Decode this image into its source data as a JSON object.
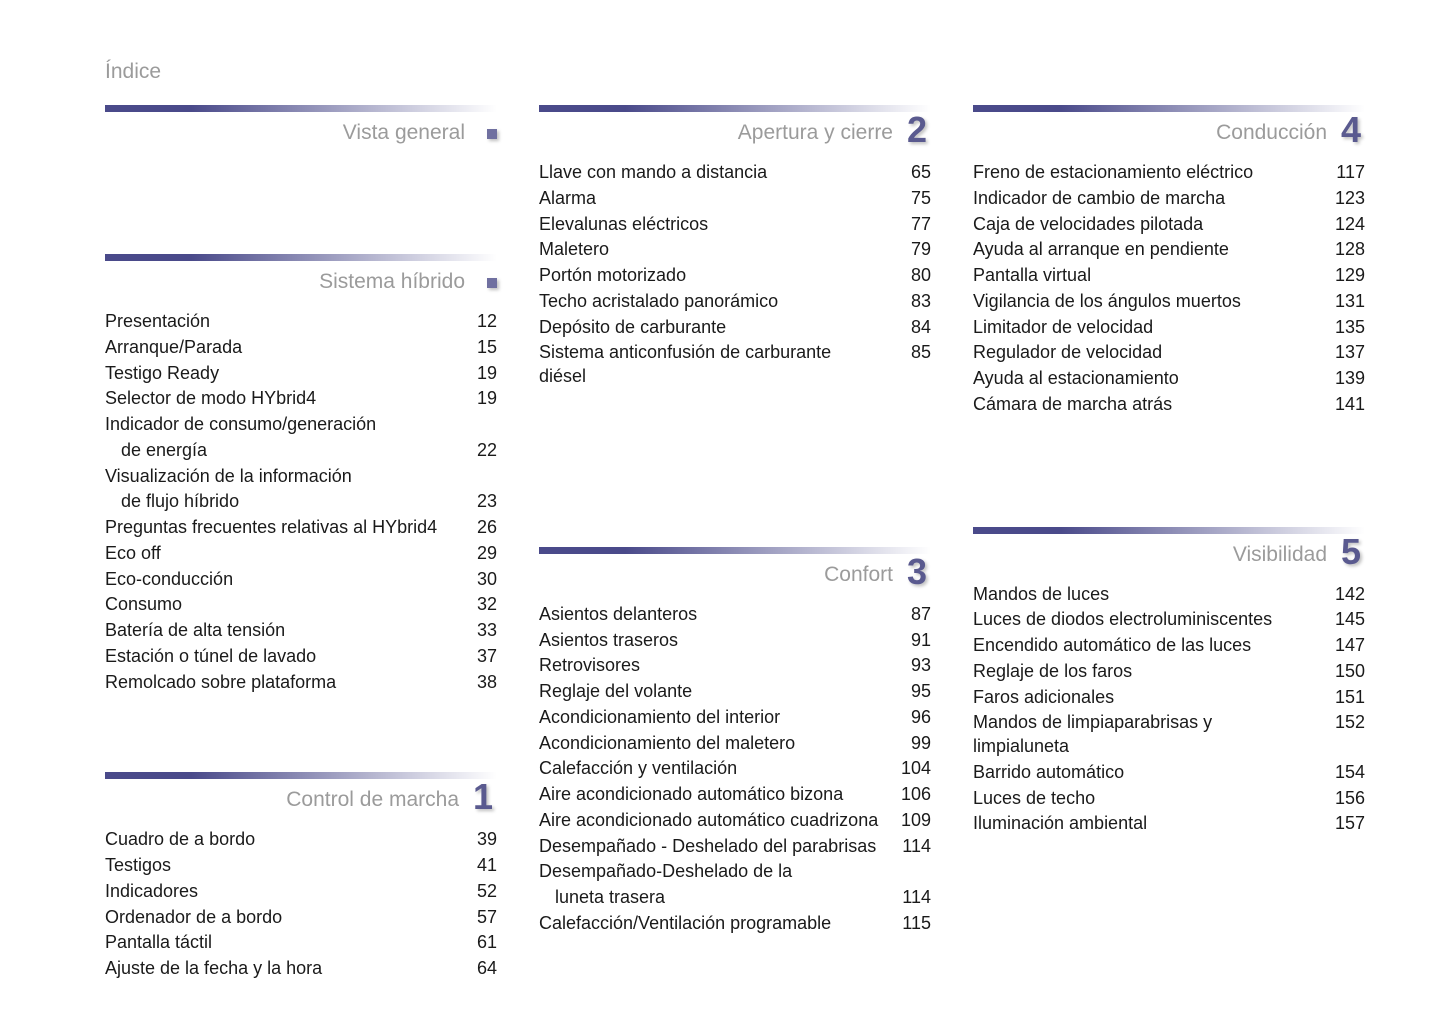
{
  "page_title": "Índice",
  "colors": {
    "bar_start": "#4a4a8a",
    "bar_end": "#ffffff",
    "number": "#5a5a8f",
    "title": "#9b9b9b",
    "text": "#1a1a1a"
  },
  "sections": {
    "vista_general": {
      "title": "Vista general",
      "number": ".",
      "entries": []
    },
    "sistema_hibrido": {
      "title": "Sistema híbrido",
      "number": ".",
      "entries": [
        {
          "label": "Presentación",
          "page": "12"
        },
        {
          "label": "Arranque/Parada",
          "page": "15"
        },
        {
          "label": "Testigo Ready",
          "page": "19"
        },
        {
          "label": "Selector de modo HYbrid4",
          "page": "19"
        },
        {
          "label": "Indicador de consumo/generación",
          "cont": "de energía",
          "page": "22"
        },
        {
          "label": "Visualización de la información",
          "cont": "de flujo híbrido",
          "page": "23"
        },
        {
          "label": "Preguntas frecuentes relativas al HYbrid4",
          "page": "26"
        },
        {
          "label": "Eco off",
          "page": "29"
        },
        {
          "label": "Eco-conducción",
          "page": "30"
        },
        {
          "label": "Consumo",
          "page": "32"
        },
        {
          "label": "Batería de alta tensión",
          "page": "33"
        },
        {
          "label": "Estación o túnel de lavado",
          "page": "37"
        },
        {
          "label": "Remolcado sobre plataforma",
          "page": "38"
        }
      ]
    },
    "control_marcha": {
      "title": "Control de marcha",
      "number": "1",
      "entries": [
        {
          "label": "Cuadro de a bordo",
          "page": "39"
        },
        {
          "label": "Testigos",
          "page": "41"
        },
        {
          "label": "Indicadores",
          "page": "52"
        },
        {
          "label": "Ordenador de a bordo",
          "page": "57"
        },
        {
          "label": "Pantalla táctil",
          "page": "61"
        },
        {
          "label": "Ajuste de la fecha y la hora",
          "page": "64"
        }
      ]
    },
    "apertura_cierre": {
      "title": "Apertura y cierre",
      "number": "2",
      "entries": [
        {
          "label": "Llave con mando a distancia",
          "page": "65"
        },
        {
          "label": "Alarma",
          "page": "75"
        },
        {
          "label": "Elevalunas eléctricos",
          "page": "77"
        },
        {
          "label": "Maletero",
          "page": "79"
        },
        {
          "label": "Portón motorizado",
          "page": "80"
        },
        {
          "label": "Techo acristalado panorámico",
          "page": "83"
        },
        {
          "label": "Depósito de carburante",
          "page": "84"
        },
        {
          "label": "Sistema anticonfusión de carburante diésel",
          "page": "85"
        }
      ]
    },
    "confort": {
      "title": "Confort",
      "number": "3",
      "entries": [
        {
          "label": "Asientos delanteros",
          "page": "87"
        },
        {
          "label": "Asientos traseros",
          "page": "91"
        },
        {
          "label": "Retrovisores",
          "page": "93"
        },
        {
          "label": "Reglaje del volante",
          "page": "95"
        },
        {
          "label": "Acondicionamiento del interior",
          "page": "96"
        },
        {
          "label": "Acondicionamiento del maletero",
          "page": "99"
        },
        {
          "label": "Calefacción y ventilación",
          "page": "104"
        },
        {
          "label": "Aire acondicionado automático bizona",
          "page": "106"
        },
        {
          "label": "Aire acondicionado automático cuadrizona",
          "page": "109"
        },
        {
          "label": "Desempañado - Deshelado del parabrisas",
          "page": "114"
        },
        {
          "label": "Desempañado-Deshelado de la",
          "cont": "luneta trasera",
          "page": "114"
        },
        {
          "label": "Calefacción/Ventilación programable",
          "page": "115"
        }
      ]
    },
    "conduccion": {
      "title": "Conducción",
      "number": "4",
      "entries": [
        {
          "label": "Freno de estacionamiento eléctrico",
          "page": "117"
        },
        {
          "label": "Indicador de cambio de marcha",
          "page": "123"
        },
        {
          "label": "Caja de velocidades pilotada",
          "page": "124"
        },
        {
          "label": "Ayuda al arranque en pendiente",
          "page": "128"
        },
        {
          "label": "Pantalla virtual",
          "page": "129"
        },
        {
          "label": "Vigilancia de los ángulos muertos",
          "page": "131"
        },
        {
          "label": "Limitador de velocidad",
          "page": "135"
        },
        {
          "label": "Regulador de velocidad",
          "page": "137"
        },
        {
          "label": "Ayuda al estacionamiento",
          "page": "139"
        },
        {
          "label": "Cámara de marcha atrás",
          "page": "141"
        }
      ]
    },
    "visibilidad": {
      "title": "Visibilidad",
      "number": "5",
      "entries": [
        {
          "label": "Mandos de luces",
          "page": "142"
        },
        {
          "label": "Luces de diodos electroluminiscentes",
          "page": "145"
        },
        {
          "label": "Encendido automático de las luces",
          "page": "147"
        },
        {
          "label": "Reglaje de los faros",
          "page": "150"
        },
        {
          "label": "Faros adicionales",
          "page": "151"
        },
        {
          "label": "Mandos de limpiaparabrisas y limpialuneta",
          "page": "152"
        },
        {
          "label": "Barrido automático",
          "page": "154"
        },
        {
          "label": "Luces de techo",
          "page": "156"
        },
        {
          "label": "Iluminación ambiental",
          "page": "157"
        }
      ]
    }
  }
}
